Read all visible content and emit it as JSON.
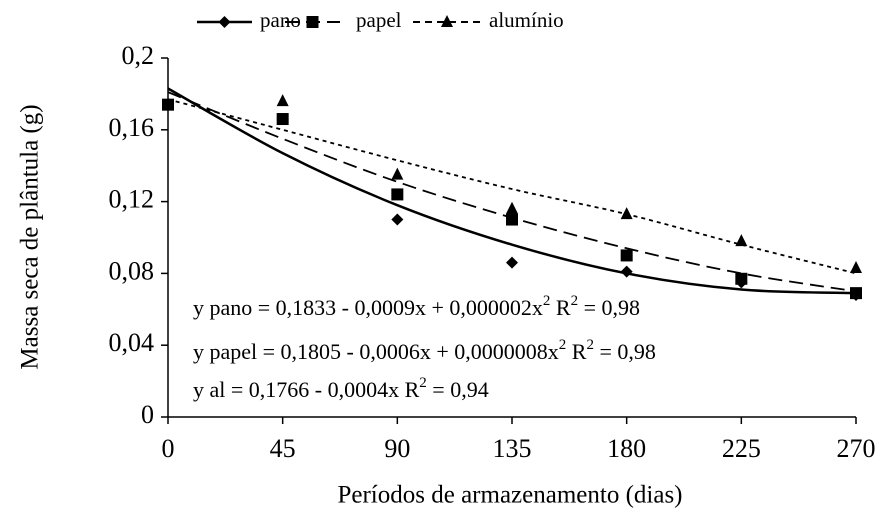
{
  "chart_data": {
    "type": "scatter",
    "x_label": "Períodos de armazenamento (dias)",
    "y_label": "Massa seca de plântula (g)",
    "x": [
      0,
      45,
      90,
      135,
      180,
      225,
      270
    ],
    "xlim": [
      0,
      270
    ],
    "xticks": [
      0,
      45,
      90,
      135,
      180,
      225,
      270
    ],
    "ylim": [
      0,
      0.2
    ],
    "yticks": [
      0,
      {
        "value": 0.04,
        "label": "0,04"
      },
      {
        "value": 0.08,
        "label": "0,08"
      },
      {
        "value": 0.12,
        "label": "0,12"
      },
      {
        "value": 0.16,
        "label": "0,16"
      },
      {
        "value": 0.2,
        "label": "0,2"
      }
    ],
    "grid": false,
    "series": [
      {
        "name": "pano",
        "color": "#000000",
        "marker": "diamond",
        "dash": "solid",
        "values": [
          0.174,
          0.166,
          0.11,
          0.086,
          0.081,
          0.075,
          0.068
        ],
        "fit_values": [
          0.183,
          0.147,
          0.118,
          0.096,
          0.08,
          0.071,
          0.069
        ]
      },
      {
        "name": "papel",
        "color": "#000000",
        "marker": "square",
        "dash": "dashed",
        "values": [
          0.174,
          0.166,
          0.124,
          0.11,
          0.09,
          0.077,
          0.069
        ],
        "fit_values": [
          0.181,
          0.155,
          0.131,
          0.111,
          0.094,
          0.08,
          0.07
        ]
      },
      {
        "name": "alumínio",
        "color": "#000000",
        "marker": "triangle",
        "dash": "dotted",
        "values": [
          0.174,
          0.176,
          0.135,
          0.116,
          0.113,
          0.098,
          0.083
        ],
        "fit_values": [
          0.177,
          0.16,
          0.143,
          0.127,
          0.113,
          0.096,
          0.08
        ]
      }
    ],
    "annotations": [
      [
        "y pano = 0,1833 - 0,0009x + 0,000002x",
        "2",
        "  R",
        "2",
        " = 0,98"
      ],
      [
        "y papel = 0,1805 - 0,0006x + 0,0000008x",
        "2",
        "  R",
        "2",
        " = 0,98"
      ],
      [
        "y al = 0,1766 - 0,0004x  R",
        "2",
        " =  0,94"
      ]
    ]
  }
}
